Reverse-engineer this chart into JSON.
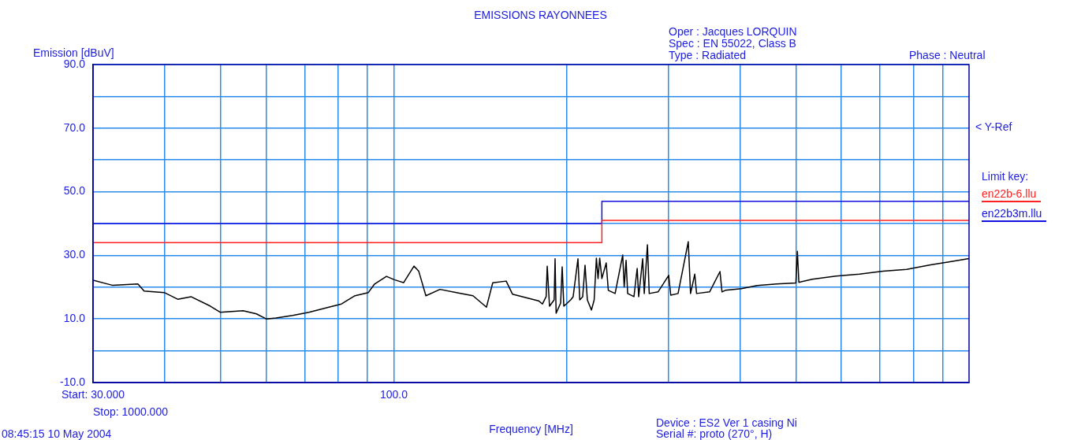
{
  "chart_data": {
    "type": "line",
    "title": "EMISSIONS RAYONNEES",
    "xlabel": "Frequency [MHz]",
    "ylabel": "Emission [dBuV]",
    "legend_title": "Limit key:",
    "legend": "right",
    "grid": true,
    "log": "x",
    "marker": "none",
    "line_style": "solid",
    "xlim": [
      30,
      1000
    ],
    "xticks": [
      {
        "value": 30,
        "label": "Start: 30.000"
      },
      {
        "value": 40,
        "label": null
      },
      {
        "value": 50,
        "label": null
      },
      {
        "value": 60,
        "label": null
      },
      {
        "value": 70,
        "label": null
      },
      {
        "value": 80,
        "label": null
      },
      {
        "value": 90,
        "label": null
      },
      {
        "value": 100,
        "label": "100.0"
      },
      {
        "value": 200,
        "label": null
      },
      {
        "value": 300,
        "label": null
      },
      {
        "value": 400,
        "label": null
      },
      {
        "value": 500,
        "label": null
      },
      {
        "value": 600,
        "label": null
      },
      {
        "value": 700,
        "label": null
      },
      {
        "value": 800,
        "label": null
      },
      {
        "value": 900,
        "label": null
      }
    ],
    "ylim": [
      -10,
      90
    ],
    "yticks": [
      {
        "value": -10,
        "label": "-10.0"
      },
      {
        "value": 0,
        "label": null
      },
      {
        "value": 10,
        "label": "10.0"
      },
      {
        "value": 20,
        "label": null
      },
      {
        "value": 30,
        "label": "30.0"
      },
      {
        "value": 40,
        "label": null
      },
      {
        "value": 50,
        "label": "50.0"
      },
      {
        "value": 60,
        "label": null
      },
      {
        "value": 70,
        "label": "70.0"
      },
      {
        "value": 80,
        "label": null
      },
      {
        "value": 90,
        "label": "90.0"
      }
    ],
    "series": [
      {
        "type": "line",
        "color": "#000000",
        "x": [
          30,
          32.4,
          35.9,
          36.8,
          39.9,
          42.1,
          44.4,
          48,
          49.9,
          54.7,
          57.7,
          60,
          62.4,
          66.7,
          71.2,
          77.1,
          81.1,
          85.6,
          90.3,
          92.6,
          97.1,
          100,
          104,
          108.4,
          110.5,
          113.7,
          120.3,
          128.5,
          137.3,
          144.9,
          148.6,
          156.8,
          160.8,
          178.5,
          181.3,
          184,
          184.8,
          186.5,
          190,
          190.7,
          191.5,
          195,
          196.2,
          197.5,
          203,
          205,
          209,
          210.5,
          213,
          215,
          217,
          220.6,
          223,
          225,
          226.5,
          228,
          230,
          234,
          236,
          242.5,
          250,
          251.5,
          253.4,
          255,
          261.5,
          264.9,
          266.5,
          270.8,
          272.5,
          276,
          278,
          288,
          300.5,
          303,
          312,
          325,
          328,
          333.6,
          336,
          354,
          369,
          372,
          377,
          402,
          428,
          463,
          500,
          503,
          506,
          534,
          587,
          645,
          709,
          779,
          857,
          927,
          1000
        ],
        "values": [
          22.2,
          20.6,
          21,
          18.8,
          18.3,
          16.2,
          17,
          14,
          12.1,
          12.6,
          11.6,
          10,
          10.3,
          11.1,
          12.1,
          13.7,
          14.7,
          17.3,
          18.3,
          21,
          23.4,
          22.4,
          21.4,
          26.6,
          25,
          17.3,
          19.3,
          18.3,
          17.3,
          13.7,
          21.4,
          21.9,
          17.8,
          15.7,
          14.7,
          17,
          26.6,
          14,
          16,
          28.9,
          11.8,
          15,
          26.4,
          14,
          16,
          17,
          28.9,
          16,
          17,
          26.9,
          16,
          12.8,
          16,
          29.1,
          22.7,
          29.1,
          22.7,
          27.6,
          19,
          18,
          30.1,
          20,
          28.4,
          18,
          17,
          25.9,
          17,
          28.9,
          18,
          33.3,
          18,
          18.5,
          23.7,
          17.5,
          18,
          34.3,
          18,
          24.1,
          18,
          18.5,
          24.9,
          18.5,
          19,
          19.5,
          20.5,
          21,
          21.3,
          31.3,
          21.5,
          22.5,
          23.5,
          24.1,
          25,
          25.6,
          27,
          28,
          29
        ]
      },
      {
        "type": "step",
        "name": "en22b-6.llu",
        "color": "#ff2020",
        "x": [
          30,
          230,
          1000
        ],
        "values": [
          34,
          41,
          41
        ]
      },
      {
        "type": "step",
        "name": "en22b3m.llu",
        "color": "#1010e0",
        "x": [
          30,
          230,
          1000
        ],
        "values": [
          40,
          47,
          47
        ]
      }
    ],
    "annotations": [
      "< Y-Ref",
      "Oper : Jacques LORQUIN",
      "Spec : EN 55022, Class B",
      "Type : Radiated",
      "Phase : Neutral",
      "Stop: 1000.000",
      "Device : ES2 Ver 1 casing Ni",
      "Serial #: proto (270°, H)",
      "08:45:15  10 May 2004"
    ]
  }
}
